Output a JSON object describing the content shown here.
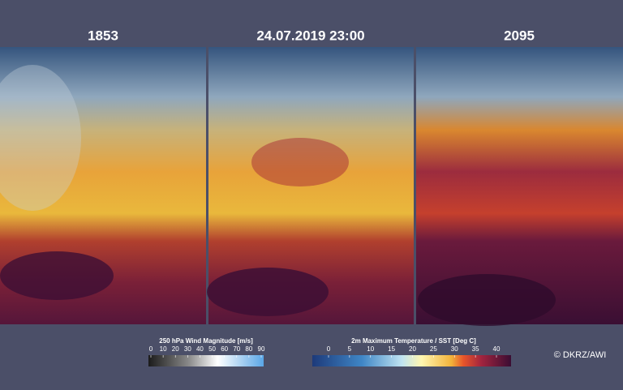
{
  "panels": [
    {
      "title": "1853"
    },
    {
      "title": "24.07.2019 23:00"
    },
    {
      "title": "2095"
    }
  ],
  "legends": [
    {
      "title": "250 hPa Wind Magnitude  [m/s]",
      "ticks": [
        0,
        10,
        20,
        30,
        40,
        50,
        60,
        70,
        80,
        90
      ]
    },
    {
      "title": "2m Maximum Temperature / SST  [Deg C]",
      "ticks": [
        0,
        5,
        10,
        15,
        20,
        25,
        30,
        35,
        40
      ]
    }
  ],
  "credit": "© DKRZ/AWI"
}
